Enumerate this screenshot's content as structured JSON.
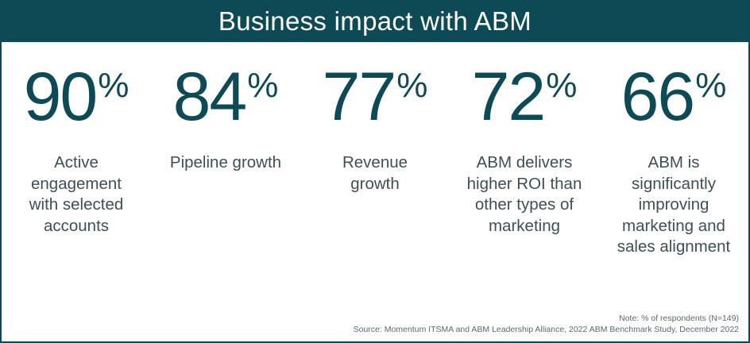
{
  "header": {
    "title": "Business impact with ABM"
  },
  "chart_data": {
    "type": "table",
    "title": "Business impact with ABM",
    "unit": "%",
    "items": [
      {
        "value": "90",
        "label": "Active engagement with selected accounts"
      },
      {
        "value": "84",
        "label": "Pipeline growth"
      },
      {
        "value": "77",
        "label": "Revenue growth"
      },
      {
        "value": "72",
        "label": "ABM delivers higher ROI than other types of marketing"
      },
      {
        "value": "66",
        "label": "ABM is significantly improving marketing and sales alignment"
      }
    ]
  },
  "footer": {
    "note": "Note: % of respondents (N=149)",
    "source": "Source: Momentum ITSMA and ABM Leadership Alliance, 2022 ABM Benchmark Study, December 2022"
  },
  "colors": {
    "brand": "#0e4a55",
    "text": "#3f4f55",
    "background": "#ffffff"
  }
}
